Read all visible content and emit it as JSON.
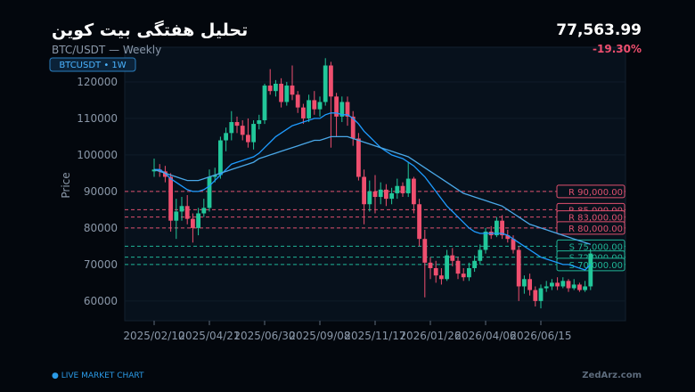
{
  "chart_data": {
    "type": "candlestick",
    "title": "تحلیل هفتگی بیت کوین",
    "subtitle": "BTC/USDT — Weekly",
    "badge": "BTCUSDT  •  1W",
    "price": "77,563.99",
    "change": "-19.30%",
    "ylabel": "Price",
    "footer_left": "● LIVE MARKET CHART",
    "footer_right": "ZedArz.com",
    "categories": [
      "2025/02/10",
      null,
      null,
      null,
      null,
      null,
      null,
      null,
      null,
      null,
      "2025/04/21",
      null,
      null,
      null,
      null,
      null,
      null,
      null,
      null,
      null,
      "2025/06/30",
      null,
      null,
      null,
      null,
      null,
      null,
      null,
      null,
      null,
      "2025/09/08",
      null,
      null,
      null,
      null,
      null,
      null,
      null,
      null,
      null,
      "2025/11/17",
      null,
      null,
      null,
      null,
      null,
      null,
      null,
      null,
      null,
      "2026/01/26",
      null,
      null,
      null,
      null,
      null,
      null,
      null,
      null,
      null,
      "2026/04/06",
      null,
      null,
      null,
      null,
      null,
      null,
      null,
      null,
      null,
      "2026/06/15",
      null,
      null,
      null,
      null,
      null,
      null,
      null,
      null,
      null
    ],
    "open": [
      95500,
      96000,
      95500,
      94000,
      82000,
      84500,
      86000,
      82500,
      80000,
      84000,
      85500,
      94000,
      94500,
      104000,
      106000,
      109000,
      108000,
      105500,
      103500,
      108500,
      109500,
      119000,
      117500,
      119500,
      114500,
      119000,
      116500,
      113000,
      110000,
      115000,
      112500,
      114500,
      124500,
      116000,
      110500,
      114500,
      110500,
      104500,
      94000,
      86500,
      90000,
      88500,
      90500,
      88000,
      89500,
      91500,
      89500,
      93500,
      86500,
      77000,
      70500,
      69000,
      67000,
      66000,
      72500,
      71000,
      67500,
      66500,
      69000,
      71000,
      74000,
      79000,
      78000,
      82000,
      78000,
      77000,
      74000,
      64000,
      66000,
      63000,
      60000,
      63500,
      64000,
      65000,
      64000,
      65500,
      63500,
      64500,
      63000,
      64000
    ],
    "high": [
      99000,
      97500,
      97000,
      95000,
      88000,
      88500,
      89000,
      84000,
      85500,
      88000,
      96000,
      96500,
      105000,
      107500,
      112000,
      110500,
      109500,
      110000,
      109500,
      111000,
      119500,
      123500,
      120500,
      121000,
      120000,
      124500,
      117500,
      114000,
      116500,
      117500,
      116000,
      126500,
      125500,
      117000,
      116000,
      116000,
      112000,
      106000,
      96000,
      93000,
      94500,
      92500,
      92000,
      91000,
      93500,
      92500,
      98000,
      94000,
      88000,
      79500,
      72000,
      71000,
      69000,
      74000,
      74500,
      72000,
      69000,
      70500,
      72500,
      75500,
      80000,
      80500,
      83000,
      83500,
      79500,
      78000,
      75000,
      67000,
      67500,
      64000,
      64500,
      65500,
      66000,
      66500,
      66500,
      66000,
      66000,
      65000,
      65500,
      74000
    ],
    "low": [
      94000,
      94000,
      92500,
      79000,
      77000,
      82000,
      81000,
      76000,
      78000,
      83000,
      84500,
      92500,
      93500,
      101000,
      104000,
      106000,
      104000,
      102000,
      101500,
      107000,
      108500,
      116500,
      116000,
      113000,
      113500,
      115000,
      111500,
      108500,
      109000,
      111000,
      110500,
      113500,
      102000,
      105000,
      109000,
      108000,
      102500,
      93000,
      81000,
      84500,
      84000,
      86500,
      86000,
      86500,
      88000,
      88500,
      88500,
      84000,
      75000,
      61000,
      66000,
      65000,
      64500,
      65500,
      69500,
      66000,
      65500,
      65500,
      68000,
      70000,
      73000,
      77000,
      77500,
      77000,
      76000,
      73000,
      60000,
      62000,
      61500,
      58500,
      58000,
      62500,
      63000,
      63000,
      63500,
      62500,
      63000,
      62500,
      62500,
      63000
    ],
    "close": [
      96000,
      95500,
      94000,
      82000,
      84500,
      86000,
      82500,
      80000,
      84000,
      85500,
      94000,
      94500,
      104000,
      106000,
      109000,
      108000,
      105500,
      103500,
      108500,
      109500,
      119000,
      117500,
      119500,
      114500,
      119000,
      116500,
      113000,
      110000,
      115000,
      112500,
      114500,
      124500,
      116000,
      110500,
      114500,
      110500,
      104500,
      94000,
      86500,
      90000,
      88500,
      90500,
      88000,
      89500,
      91500,
      89500,
      93500,
      86500,
      77000,
      70500,
      69000,
      67000,
      66000,
      72500,
      71000,
      67500,
      66500,
      69000,
      71000,
      74000,
      79000,
      78000,
      82000,
      78000,
      77000,
      74000,
      64000,
      66000,
      63000,
      60000,
      63500,
      64000,
      65000,
      64000,
      65500,
      63500,
      64500,
      63000,
      64000,
      73000
    ],
    "up_color": "#22c79a",
    "down_color": "#ef4f6f",
    "series": [
      {
        "color": "#1e9bff",
        "values": [
          96000,
          96000,
          95000,
          93500,
          92500,
          91500,
          90500,
          90000,
          90000,
          90500,
          91500,
          93000,
          94500,
          96000,
          97500,
          98000,
          98500,
          99000,
          99500,
          100500,
          102000,
          103500,
          105000,
          106000,
          107000,
          108000,
          108500,
          109000,
          109500,
          110000,
          110000,
          111000,
          111500,
          111500,
          111000,
          111000,
          110000,
          108500,
          106500,
          105000,
          103500,
          102000,
          101000,
          100000,
          99500,
          99000,
          98000,
          97000,
          95500,
          94000,
          92000,
          90000,
          88000,
          86000,
          84500,
          83000,
          81500,
          80000,
          79000,
          78500,
          78500,
          78500,
          78500,
          78500,
          78000,
          77000,
          76000,
          75000,
          74000,
          73000,
          72000,
          71500,
          71000,
          70500,
          70000,
          70000,
          69500,
          69000,
          68500,
          70000
        ]
      },
      {
        "color": "#4aa8e8",
        "values": [
          96000,
          95500,
          95000,
          94500,
          94000,
          93500,
          93000,
          93000,
          93000,
          93500,
          94000,
          94500,
          95000,
          95500,
          96000,
          96500,
          97000,
          97500,
          98000,
          99000,
          99500,
          100000,
          100500,
          101000,
          101500,
          102000,
          102500,
          103000,
          103500,
          104000,
          104000,
          104500,
          105000,
          105000,
          105000,
          105000,
          104500,
          104000,
          103500,
          103000,
          102500,
          102000,
          101500,
          101000,
          100500,
          100000,
          99500,
          98500,
          97500,
          96500,
          95500,
          94500,
          93500,
          92500,
          91500,
          90500,
          89500,
          89000,
          88500,
          88000,
          87500,
          87000,
          86500,
          86000,
          85000,
          84000,
          83000,
          82000,
          81000,
          80500,
          80000,
          79500,
          79000,
          78500,
          78000,
          77500,
          77000,
          76500,
          76000,
          75500
        ]
      }
    ],
    "levels": [
      {
        "label": "R  90,000.00",
        "value": 90000,
        "color": "#e0506e"
      },
      {
        "label": "R  85,000.00",
        "value": 85000,
        "color": "#e0506e"
      },
      {
        "label": "R  83,000.00",
        "value": 83000,
        "color": "#e0506e"
      },
      {
        "label": "R  80,000.00",
        "value": 80000,
        "color": "#e0506e"
      },
      {
        "label": "S  75,000.00",
        "value": 75000,
        "color": "#1fb596"
      },
      {
        "label": "S  72,000.00",
        "value": 72000,
        "color": "#1fb596"
      },
      {
        "label": "S  70,000.00",
        "value": 70000,
        "color": "#1fb596"
      }
    ],
    "ylim": [
      54600,
      129500
    ],
    "yticks": [
      60000,
      70000,
      80000,
      90000,
      100000,
      110000,
      120000
    ],
    "grid": true
  }
}
